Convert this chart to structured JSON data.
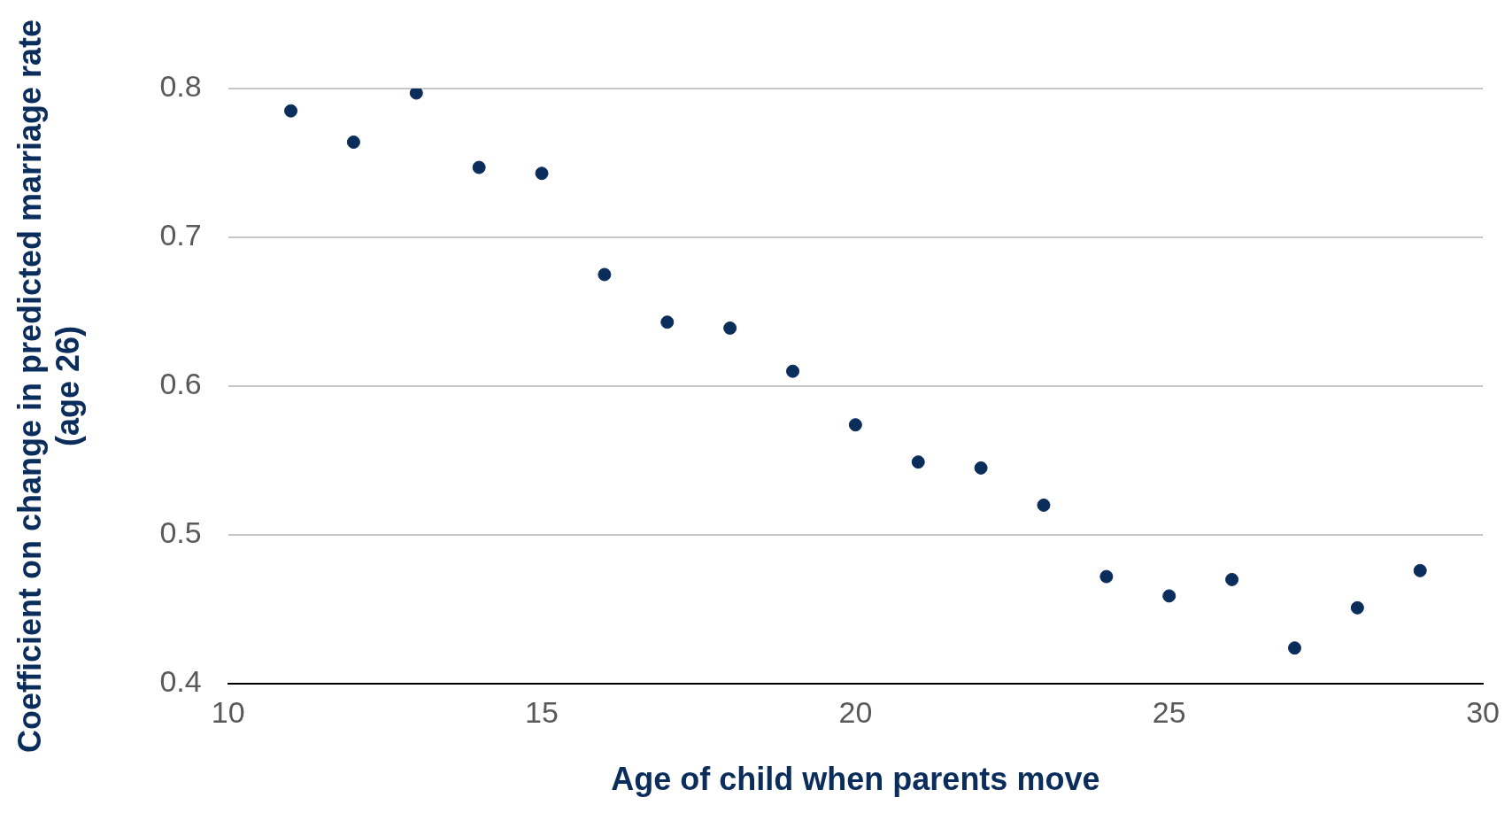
{
  "chart_data": {
    "type": "scatter",
    "xlabel": "Age of child when parents move",
    "ylabel": "Coefficient on change in predicted marriage rate (age 26)",
    "x": [
      11,
      12,
      13,
      14,
      15,
      16,
      17,
      18,
      19,
      20,
      21,
      22,
      23,
      24,
      25,
      26,
      27,
      28,
      29
    ],
    "series": [
      {
        "color": "#0b2d5b",
        "values": [
          0.785,
          0.764,
          0.797,
          0.747,
          0.743,
          0.675,
          0.643,
          0.639,
          0.61,
          0.574,
          0.549,
          0.545,
          0.52,
          0.472,
          0.459,
          0.47,
          0.424,
          0.451,
          0.476
        ]
      }
    ],
    "xlim": [
      10,
      30
    ],
    "xticks": [
      10,
      15,
      20,
      25,
      30
    ],
    "ylim": [
      0.4,
      0.8
    ],
    "yticks": [
      0.4,
      0.5,
      0.6,
      0.7,
      0.8
    ],
    "grid": "y",
    "legend": false,
    "marker": "circle"
  }
}
